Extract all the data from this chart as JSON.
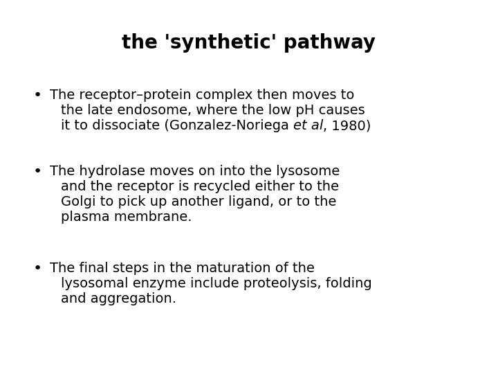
{
  "title": "the 'synthetic' pathway",
  "title_fontsize": 20,
  "title_fontweight": "bold",
  "background_color": "#ffffff",
  "text_color": "#000000",
  "body_fontsize": 14,
  "bullet_fontsize": 14,
  "bullet1": {
    "lines": [
      "The receptor–protein complex then moves to",
      "the late endosome, where the low pH causes",
      "it to dissociate (Gonzalez-Noriega ",
      "et al",
      ", 1980)"
    ]
  },
  "bullet2": {
    "lines": [
      "The hydrolase moves on into the lysosome",
      "and the receptor is recycled either to the",
      "Golgi to pick up another ligand, or to the",
      "plasma membrane."
    ]
  },
  "bullet3": {
    "lines": [
      "The final steps in the maturation of the",
      "lysosomal enzyme include proteolysis, folding",
      "and aggregation."
    ]
  }
}
